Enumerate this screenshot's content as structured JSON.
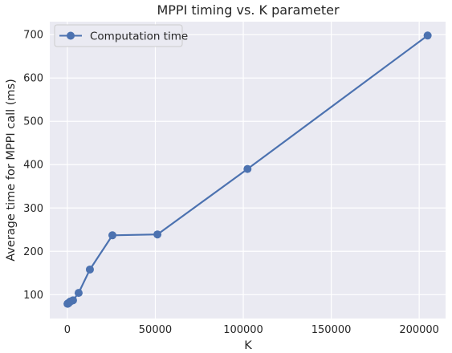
{
  "chart_data": {
    "type": "line",
    "title": "MPPI timing vs. K parameter",
    "xlabel": "K",
    "ylabel": "Average time for MPPI call (ms)",
    "xlim": [
      -10000,
      215000
    ],
    "ylim": [
      45,
      730
    ],
    "xticks": [
      0,
      50000,
      100000,
      150000,
      200000
    ],
    "xtick_labels": [
      "0",
      "50000",
      "100000",
      "150000",
      "200000"
    ],
    "yticks": [
      100,
      200,
      300,
      400,
      500,
      600,
      700
    ],
    "ytick_labels": [
      "100",
      "200",
      "300",
      "400",
      "500",
      "600",
      "700"
    ],
    "grid": true,
    "legend_position": "top-left",
    "series": [
      {
        "name": "Computation time",
        "color": "#4c72b0",
        "marker": "circle",
        "x": [
          100,
          200,
          400,
          800,
          1600,
          3200,
          6400,
          12800,
          25600,
          51200,
          102400,
          204800
        ],
        "y": [
          79,
          79,
          80,
          81,
          84,
          87,
          104,
          158,
          237,
          239,
          390,
          698
        ]
      }
    ]
  },
  "colors": {
    "plot_background": "#eaeaf2",
    "grid": "#ffffff",
    "series": "#4c72b0"
  }
}
